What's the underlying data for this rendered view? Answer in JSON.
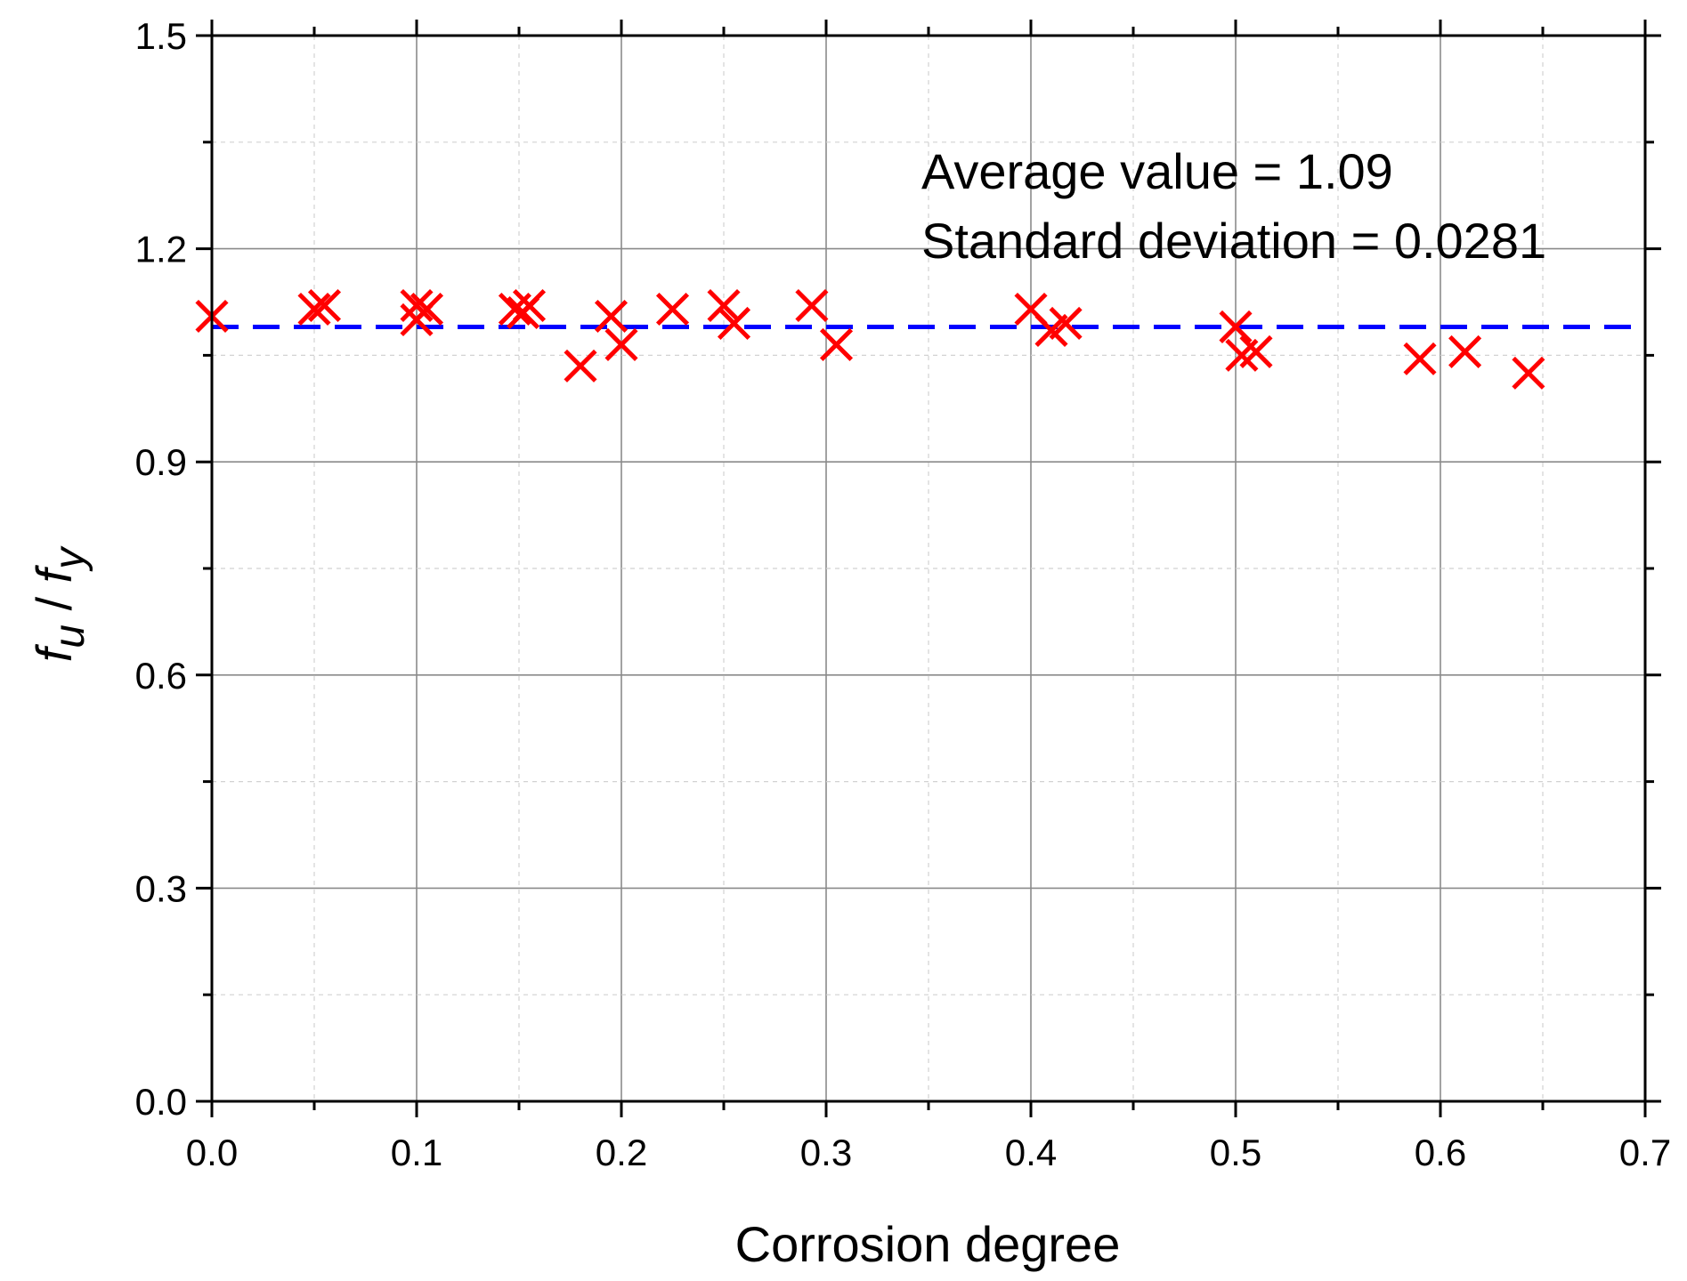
{
  "chart_data": {
    "type": "scatter",
    "title": "",
    "xlabel": "Corrosion degree",
    "ylabel_parts": {
      "f1": "f",
      "sub1": "u",
      "slash": " / ",
      "f2": "f",
      "sub2": "y"
    },
    "xlim": [
      0,
      0.7
    ],
    "ylim": [
      0,
      1.5
    ],
    "x_ticks": [
      "0.0",
      "0.1",
      "0.2",
      "0.3",
      "0.4",
      "0.5",
      "0.6",
      "0.7"
    ],
    "y_ticks": [
      "0.0",
      "0.3",
      "0.6",
      "0.9",
      "1.2",
      "1.5"
    ],
    "grid": true,
    "series": [
      {
        "name": "fu/fy",
        "marker": "x",
        "color": "#ff0000",
        "points": [
          [
            0.0,
            1.105
          ],
          [
            0.05,
            1.115
          ],
          [
            0.055,
            1.12
          ],
          [
            0.1,
            1.12
          ],
          [
            0.1,
            1.1
          ],
          [
            0.105,
            1.115
          ],
          [
            0.148,
            1.115
          ],
          [
            0.152,
            1.11
          ],
          [
            0.155,
            1.12
          ],
          [
            0.18,
            1.035
          ],
          [
            0.195,
            1.105
          ],
          [
            0.2,
            1.065
          ],
          [
            0.225,
            1.115
          ],
          [
            0.25,
            1.12
          ],
          [
            0.255,
            1.095
          ],
          [
            0.293,
            1.12
          ],
          [
            0.305,
            1.065
          ],
          [
            0.4,
            1.115
          ],
          [
            0.41,
            1.085
          ],
          [
            0.417,
            1.095
          ],
          [
            0.5,
            1.09
          ],
          [
            0.503,
            1.05
          ],
          [
            0.51,
            1.055
          ],
          [
            0.59,
            1.045
          ],
          [
            0.612,
            1.055
          ],
          [
            0.643,
            1.025
          ]
        ]
      }
    ],
    "reference_line": {
      "y": 1.09,
      "color": "#0000ff",
      "style": "dashed"
    },
    "annotations": [
      "Average value = 1.09",
      "Standard deviation = 0.0281"
    ]
  }
}
